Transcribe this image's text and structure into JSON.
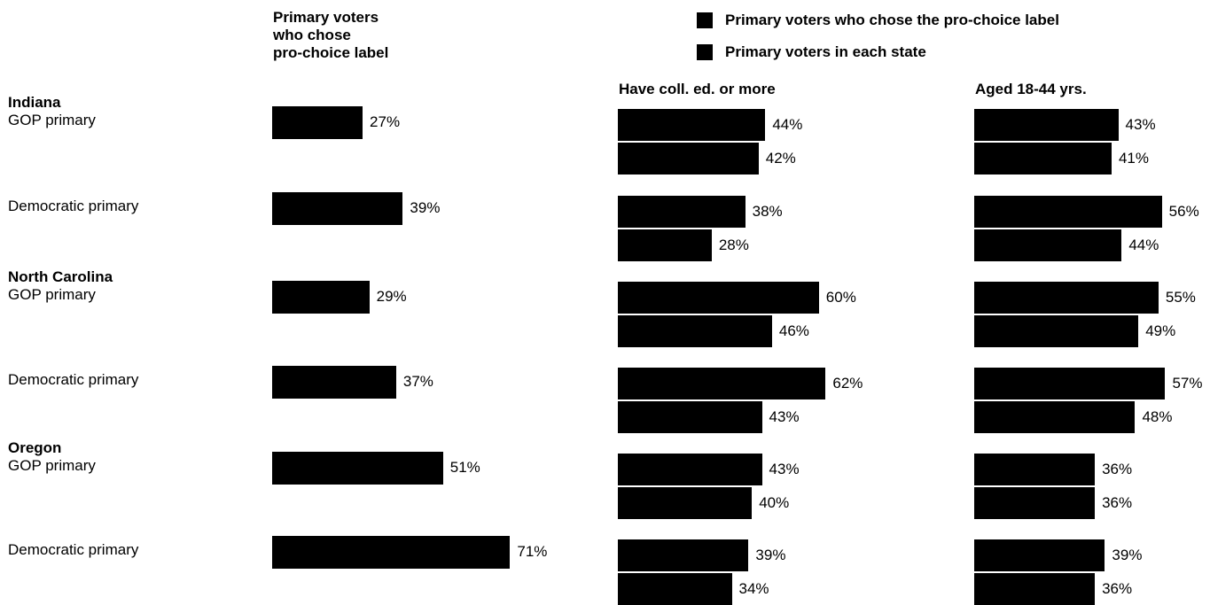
{
  "chart_data": {
    "type": "bar",
    "orientation": "horizontal",
    "bar_color": "#000000",
    "legend": {
      "placement": "top-right",
      "entries": [
        "Primary voters who chose the pro-choice label",
        "Primary voters in each state"
      ]
    },
    "left_panel": {
      "title_lines": [
        "Primary voters",
        "who chose",
        "pro-choice label"
      ],
      "values": [
        27,
        39,
        29,
        37,
        51,
        71
      ]
    },
    "panels": [
      {
        "title": "Have coll. ed. or more",
        "series": [
          {
            "name": "Primary voters who chose the pro-choice label",
            "values": [
              44,
              38,
              60,
              62,
              43,
              39
            ]
          },
          {
            "name": "Primary voters in each state",
            "values": [
              42,
              28,
              46,
              43,
              40,
              34
            ]
          }
        ]
      },
      {
        "title": "Aged 18-44 yrs.",
        "series": [
          {
            "name": "Primary voters who chose the pro-choice label",
            "values": [
              43,
              56,
              55,
              57,
              36,
              39
            ]
          },
          {
            "name": "Primary voters in each state",
            "values": [
              41,
              44,
              49,
              48,
              36,
              36
            ]
          }
        ]
      }
    ],
    "rows": [
      {
        "state": "Indiana",
        "label": "GOP primary"
      },
      {
        "state": "",
        "label": "Democratic primary"
      },
      {
        "state": "North Carolina",
        "label": "GOP primary"
      },
      {
        "state": "",
        "label": "Democratic primary"
      },
      {
        "state": "Oregon",
        "label": "GOP primary"
      },
      {
        "state": "",
        "label": "Democratic primary"
      }
    ],
    "value_suffix": "%"
  }
}
